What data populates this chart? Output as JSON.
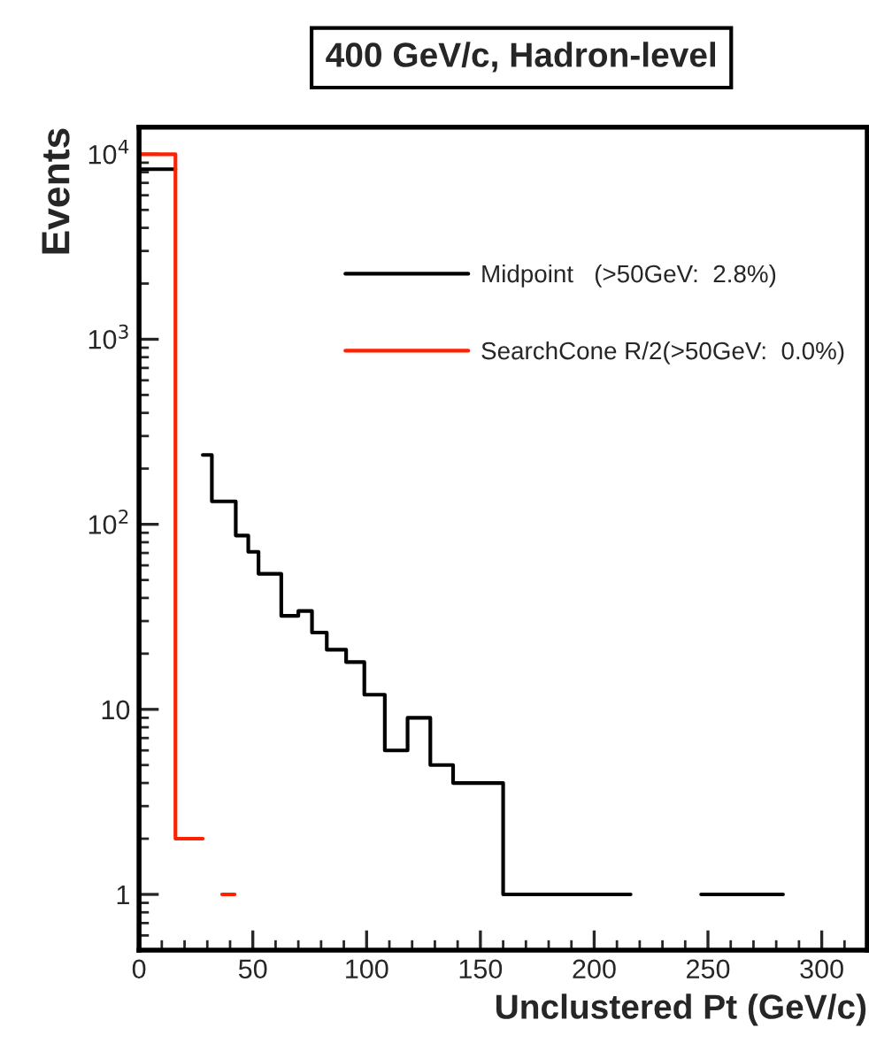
{
  "chart_data": {
    "type": "step",
    "title": "400 GeV/c, Hadron-level",
    "xlabel": "Unclustered Pt (GeV/c)",
    "ylabel": "Events",
    "log": "y",
    "xlim": [
      0,
      320
    ],
    "ylim": [
      0.5,
      14000
    ],
    "xticks": [
      0,
      50,
      100,
      150,
      200,
      250,
      300
    ],
    "yticks": [
      {
        "value": 1,
        "label": "1"
      },
      {
        "value": 10,
        "label": "10"
      },
      {
        "value": 100,
        "label": "10$^{2}$"
      },
      {
        "value": 1000,
        "label": "10$^{3}$"
      },
      {
        "value": 10000,
        "label": "10$^{4}$"
      }
    ],
    "legend": "top right",
    "grid": false,
    "series": [
      {
        "name": "Midpoint   (>50GeV:  2.8%)",
        "color": "#000000",
        "x": [
          0,
          16,
          28,
          32,
          42.5,
          48,
          52.5,
          62.5,
          70,
          76,
          82.5,
          91,
          99,
          108,
          118,
          128,
          138,
          160,
          216,
          247,
          283
        ],
        "values": [
          8300,
          null,
          237,
          133,
          87,
          71,
          54,
          32,
          34,
          26,
          21,
          18,
          12,
          6,
          9,
          5,
          4,
          1,
          null,
          1,
          1
        ]
      },
      {
        "name": "SearchCone R/2(>50GeV:  0.0%)",
        "color": "#ff2200",
        "x": [
          0,
          16,
          28,
          36.5,
          42
        ],
        "values": [
          10000,
          2,
          null,
          1,
          1
        ]
      }
    ]
  }
}
